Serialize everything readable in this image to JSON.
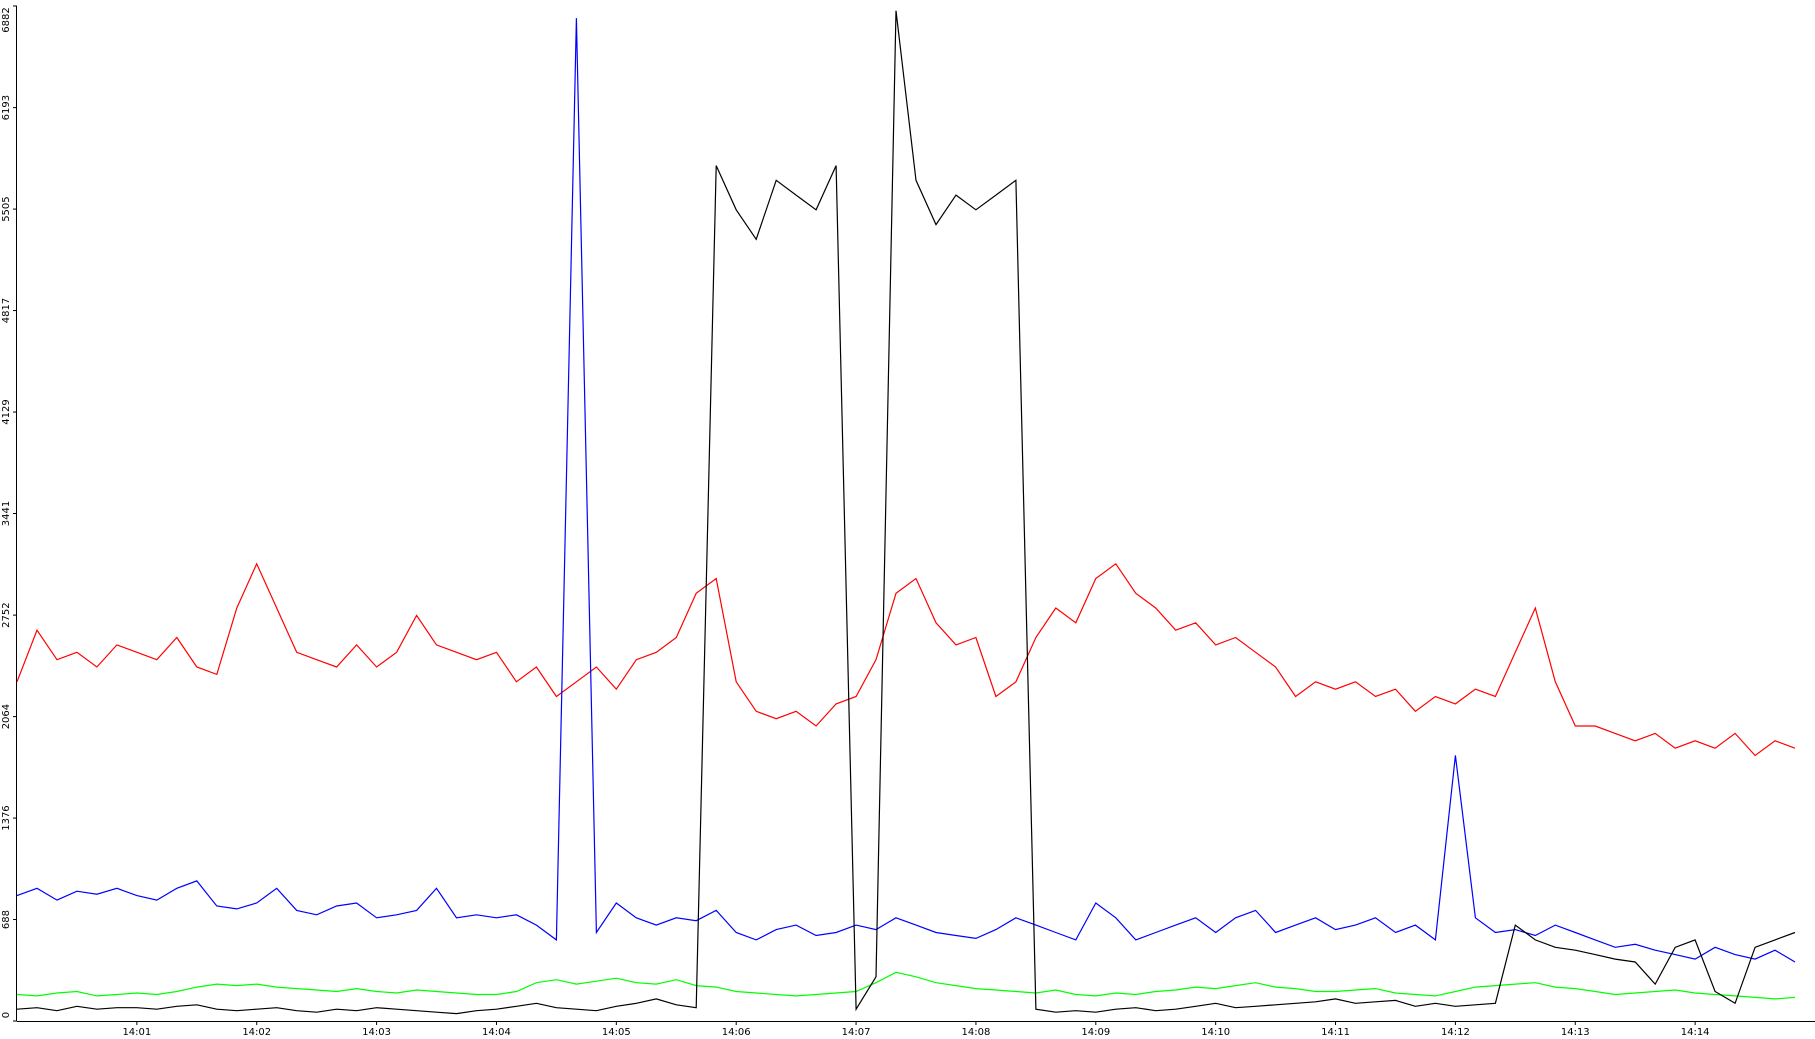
{
  "chart_data": {
    "type": "line",
    "categories": [
      null,
      null,
      null,
      null,
      null,
      null,
      "14:01",
      null,
      null,
      null,
      null,
      null,
      "14:02",
      null,
      null,
      null,
      null,
      null,
      "14:03",
      null,
      null,
      null,
      null,
      null,
      "14:04",
      null,
      null,
      null,
      null,
      null,
      "14:05",
      null,
      null,
      null,
      null,
      null,
      "14:06",
      null,
      null,
      null,
      null,
      null,
      "14:07",
      null,
      null,
      null,
      null,
      null,
      "14:08",
      null,
      null,
      null,
      null,
      null,
      "14:09",
      null,
      null,
      null,
      null,
      null,
      "14:10",
      null,
      null,
      null,
      null,
      null,
      "14:11",
      null,
      null,
      null,
      null,
      null,
      "14:12",
      null,
      null,
      null,
      null,
      null,
      "14:13",
      null,
      null,
      null,
      null,
      null,
      "14:14",
      null,
      null,
      null,
      null,
      null
    ],
    "series": [
      {
        "color": "#ff0000",
        "values": [
          2300,
          2650,
          2450,
          2500,
          2400,
          2550,
          2500,
          2450,
          2600,
          2400,
          2350,
          2800,
          3100,
          2800,
          2500,
          2450,
          2400,
          2550,
          2400,
          2500,
          2750,
          2550,
          2500,
          2450,
          2500,
          2300,
          2400,
          2200,
          2300,
          2400,
          2250,
          2450,
          2500,
          2600,
          2900,
          3000,
          2300,
          2100,
          2050,
          2100,
          2000,
          2150,
          2200,
          2450,
          2900,
          3000,
          2700,
          2550,
          2600,
          2200,
          2300,
          2600,
          2800,
          2700,
          3000,
          3100,
          2900,
          2800,
          2650,
          2700,
          2550,
          2600,
          2500,
          2400,
          2200,
          2300,
          2250,
          2300,
          2200,
          2250,
          2100,
          2200,
          2150,
          2250,
          2200,
          2500,
          2800,
          2300,
          2000,
          2000,
          1950,
          1900,
          1950,
          1850,
          1900,
          1850,
          1950,
          1800,
          1900,
          1850
        ]
      },
      {
        "color": "#0000ff",
        "values": [
          850,
          900,
          820,
          880,
          860,
          900,
          850,
          820,
          900,
          950,
          780,
          760,
          800,
          900,
          750,
          720,
          780,
          800,
          700,
          720,
          750,
          900,
          700,
          720,
          700,
          720,
          650,
          550,
          6800,
          600,
          800,
          700,
          650,
          700,
          680,
          750,
          600,
          550,
          620,
          650,
          580,
          600,
          650,
          620,
          700,
          650,
          600,
          580,
          560,
          620,
          700,
          650,
          600,
          550,
          800,
          700,
          550,
          600,
          650,
          700,
          600,
          700,
          750,
          600,
          650,
          700,
          620,
          650,
          700,
          600,
          650,
          550,
          1800,
          700,
          600,
          620,
          580,
          650,
          600,
          550,
          500,
          520,
          480,
          450,
          420,
          500,
          450,
          420,
          480,
          400
        ]
      },
      {
        "color": "#00ff00",
        "values": [
          180,
          170,
          190,
          200,
          170,
          180,
          190,
          180,
          200,
          230,
          250,
          240,
          250,
          230,
          220,
          210,
          200,
          220,
          200,
          190,
          210,
          200,
          190,
          180,
          180,
          200,
          260,
          280,
          250,
          270,
          290,
          260,
          250,
          280,
          240,
          230,
          200,
          190,
          180,
          170,
          180,
          190,
          200,
          260,
          330,
          300,
          260,
          240,
          220,
          210,
          200,
          190,
          210,
          180,
          170,
          190,
          180,
          200,
          210,
          230,
          220,
          240,
          260,
          230,
          220,
          200,
          200,
          210,
          220,
          190,
          180,
          170,
          200,
          230,
          240,
          250,
          260,
          230,
          220,
          200,
          180,
          190,
          200,
          210,
          190,
          180,
          170,
          160,
          150,
          160
        ]
      },
      {
        "color": "#000000",
        "values": [
          80,
          90,
          70,
          100,
          80,
          90,
          90,
          80,
          100,
          110,
          80,
          70,
          80,
          90,
          70,
          60,
          80,
          70,
          90,
          80,
          70,
          60,
          50,
          70,
          80,
          100,
          120,
          90,
          80,
          70,
          100,
          120,
          150,
          110,
          90,
          5800,
          5500,
          5300,
          5700,
          5600,
          5500,
          5800,
          80,
          300,
          6850,
          5700,
          5400,
          5600,
          5500,
          5600,
          5700,
          80,
          60,
          70,
          60,
          80,
          90,
          70,
          80,
          100,
          120,
          90,
          100,
          110,
          120,
          130,
          150,
          120,
          130,
          140,
          100,
          120,
          100,
          110,
          120,
          650,
          550,
          500,
          480,
          450,
          420,
          400,
          250,
          500,
          550,
          200,
          120,
          500,
          550,
          600
        ]
      }
    ],
    "ylim": [
      0,
      6882
    ],
    "yticks": [
      0,
      688,
      1376,
      2064,
      2752,
      3441,
      4129,
      4817,
      5505,
      6193,
      6882
    ]
  }
}
